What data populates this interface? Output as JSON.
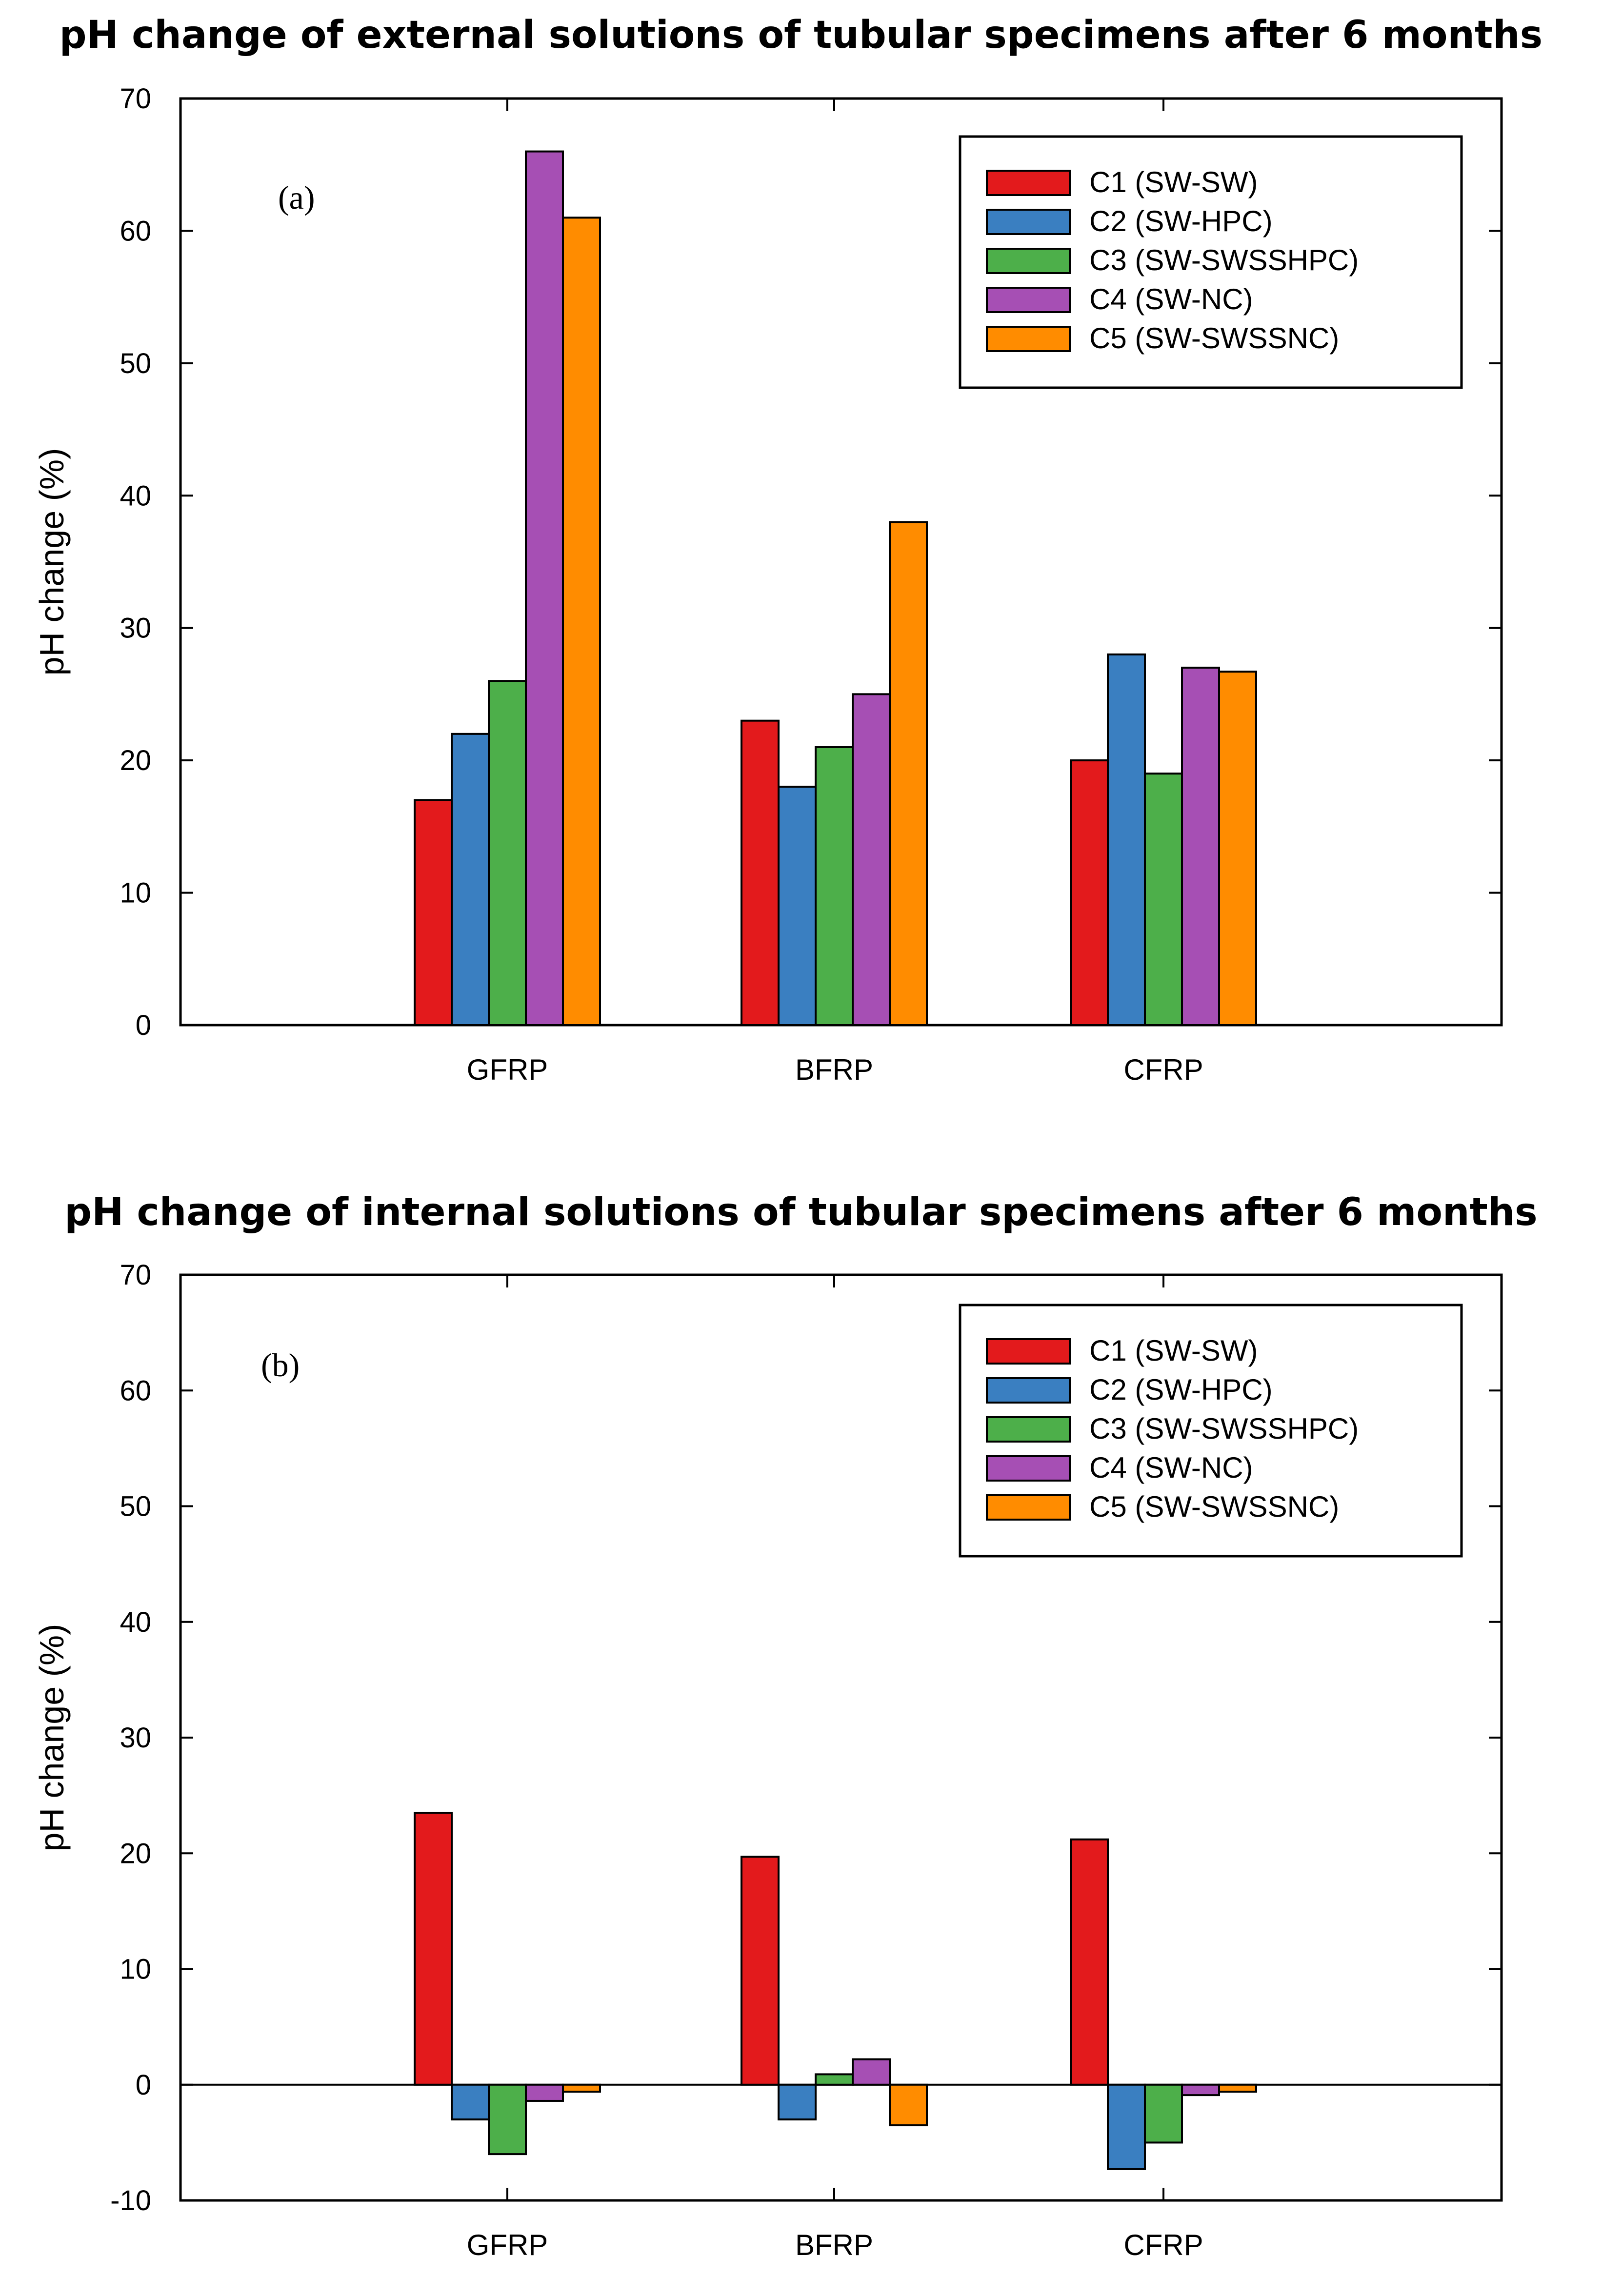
{
  "chart_data": [
    {
      "type": "bar",
      "title": "pH change of external solutions of tubular specimens after 6 months",
      "panel_label": "(a)",
      "xlabel": "",
      "ylabel": "pH change (%)",
      "ylim": [
        0,
        70
      ],
      "yticks": [
        0,
        10,
        20,
        30,
        40,
        50,
        60,
        70
      ],
      "categories": [
        "GFRP",
        "BFRP",
        "CFRP"
      ],
      "legend_position": "top-right",
      "series": [
        {
          "name": "C1 (SW-SW)",
          "color": "#e31a1c",
          "values": [
            17,
            23,
            20
          ]
        },
        {
          "name": "C2 (SW-HPC)",
          "color": "#3a7fc1",
          "values": [
            22,
            18,
            28
          ]
        },
        {
          "name": "C3 (SW-SWSSHPC)",
          "color": "#4daf4a",
          "values": [
            26,
            21,
            19
          ]
        },
        {
          "name": "C4 (SW-NC)",
          "color": "#a64fb4",
          "values": [
            66,
            25,
            27
          ]
        },
        {
          "name": "C5 (SW-SWSSNC)",
          "color": "#ff8c00",
          "values": [
            61,
            38,
            26.7
          ]
        }
      ]
    },
    {
      "type": "bar",
      "title": "pH change of internal solutions of tubular specimens after 6 months",
      "panel_label": "(b)",
      "xlabel": "",
      "ylabel": "pH change (%)",
      "ylim": [
        -10,
        70
      ],
      "yticks": [
        -10,
        0,
        10,
        20,
        30,
        40,
        50,
        60,
        70
      ],
      "categories": [
        "GFRP",
        "BFRP",
        "CFRP"
      ],
      "legend_position": "top-right",
      "series": [
        {
          "name": "C1 (SW-SW)",
          "color": "#e31a1c",
          "values": [
            23.5,
            19.7,
            21.2
          ]
        },
        {
          "name": "C2 (SW-HPC)",
          "color": "#3a7fc1",
          "values": [
            -3.0,
            -3.0,
            -7.3
          ]
        },
        {
          "name": "C3 (SW-SWSSHPC)",
          "color": "#4daf4a",
          "values": [
            -6.0,
            0.9,
            -5.0
          ]
        },
        {
          "name": "C4 (SW-NC)",
          "color": "#a64fb4",
          "values": [
            -1.4,
            2.2,
            -0.9
          ]
        },
        {
          "name": "C5 (SW-SWSSNC)",
          "color": "#ff8c00",
          "values": [
            -0.6,
            -3.5,
            -0.6
          ]
        }
      ]
    }
  ]
}
